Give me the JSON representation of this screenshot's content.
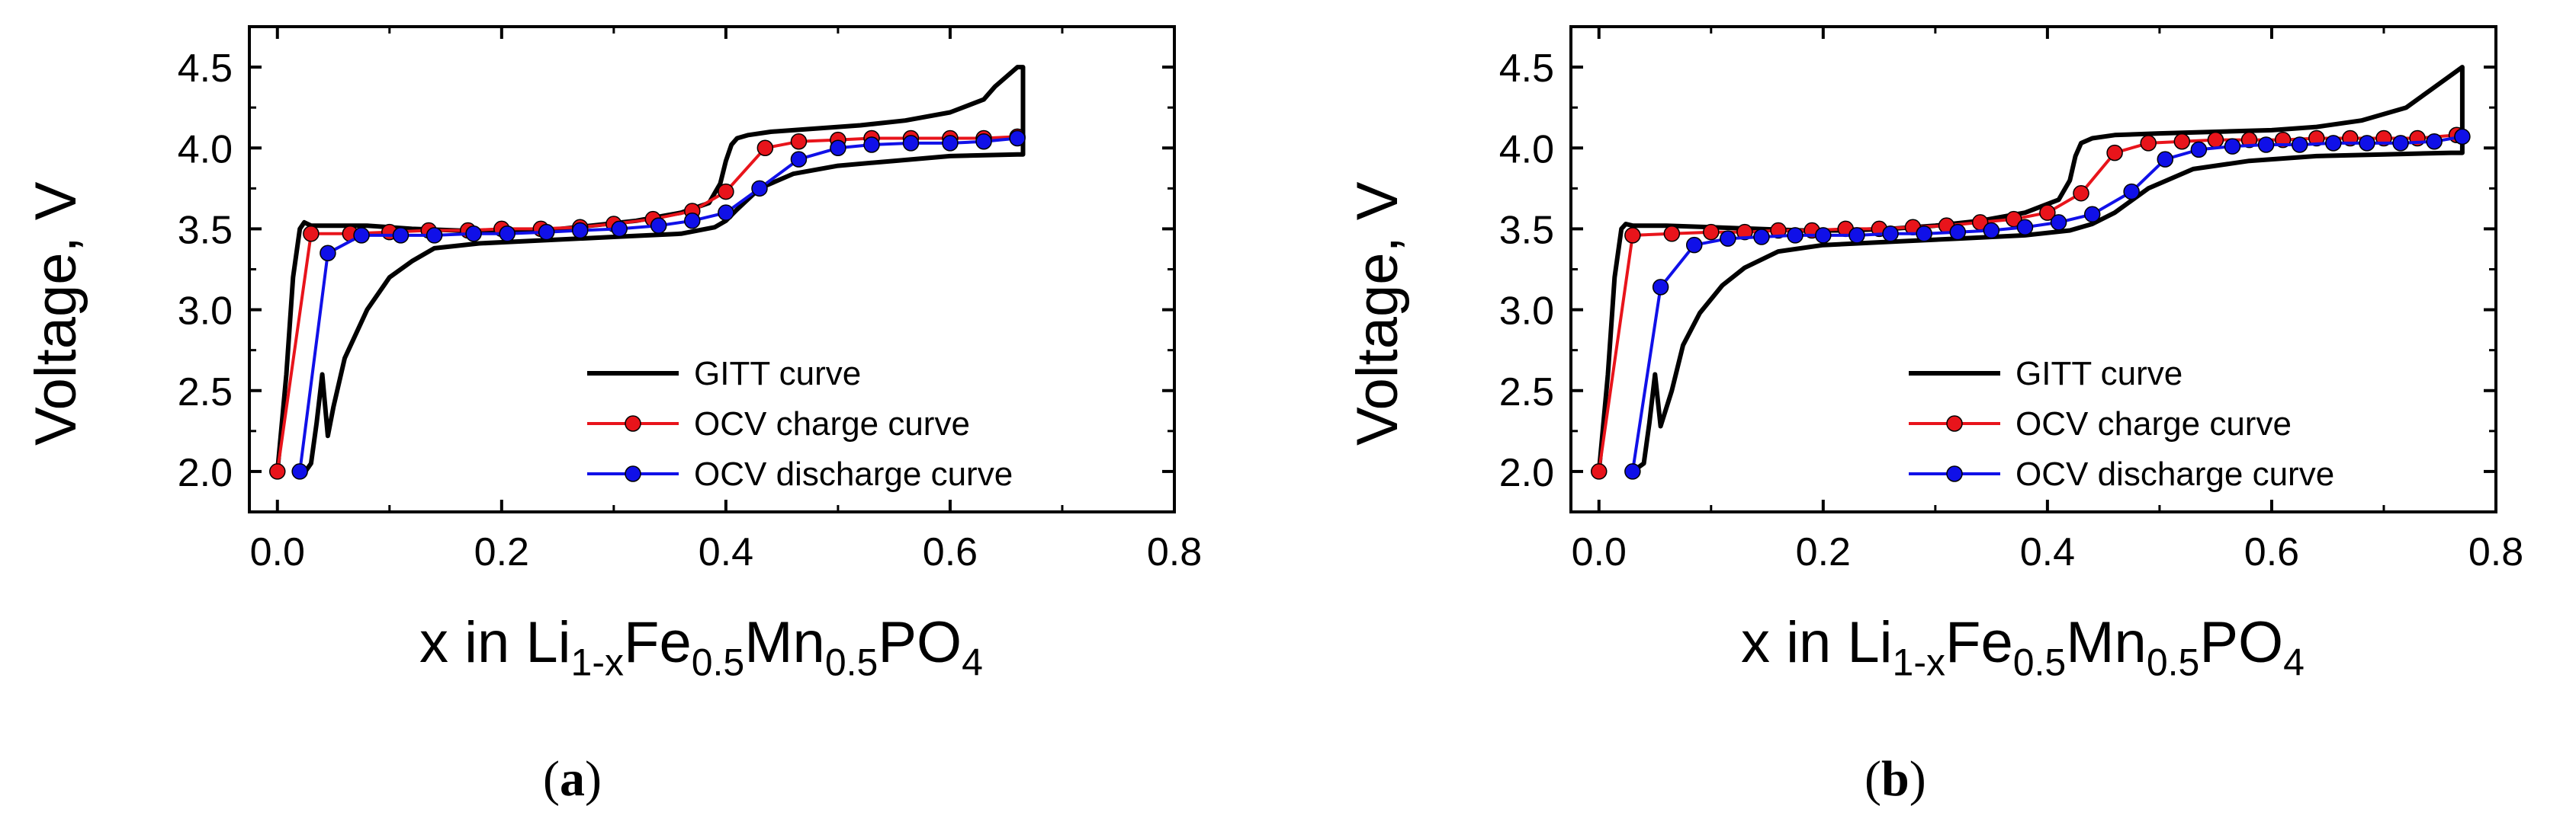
{
  "charts": [
    {
      "label": "a",
      "chart_data": {
        "type": "line",
        "xlabel": "x in Li1-xFe0.5Mn0.5PO4",
        "xlabel_parts": {
          "main": "x in Li",
          "sub1": "1-x",
          "mid1": "Fe",
          "sub2": "0.5",
          "mid2": "Mn",
          "sub3": "0.5",
          "mid3": "PO",
          "sub4": "4"
        },
        "ylabel": "Voltage, V",
        "xlim": [
          -0.025,
          0.8
        ],
        "ylim": [
          1.75,
          4.75
        ],
        "xticks": [
          0.0,
          0.2,
          0.4,
          0.6,
          0.8
        ],
        "xtick_labels": [
          "0.0",
          "0.2",
          "0.4",
          "0.6",
          "0.8"
        ],
        "yticks": [
          2.0,
          2.5,
          3.0,
          3.5,
          4.0,
          4.5
        ],
        "ytick_labels": [
          "2.0",
          "2.5",
          "3.0",
          "3.5",
          "4.0",
          "4.5"
        ],
        "legend_position": "bottom-right",
        "series": [
          {
            "name": "GITT curve",
            "color": "#000000",
            "marker": "none",
            "x": [
              0.0,
              0.008,
              0.014,
              0.02,
              0.024,
              0.03,
              0.05,
              0.08,
              0.12,
              0.16,
              0.2,
              0.24,
              0.28,
              0.32,
              0.36,
              0.385,
              0.395,
              0.4,
              0.405,
              0.41,
              0.42,
              0.44,
              0.48,
              0.52,
              0.56,
              0.6,
              0.63,
              0.64,
              0.66,
              0.665,
              0.665,
              0.66,
              0.6,
              0.55,
              0.5,
              0.46,
              0.43,
              0.41,
              0.4,
              0.39,
              0.36,
              0.3,
              0.24,
              0.18,
              0.14,
              0.12,
              0.1,
              0.08,
              0.06,
              0.05,
              0.045,
              0.04,
              0.035,
              0.03,
              0.025
            ],
            "y": [
              2.0,
              2.6,
              3.2,
              3.5,
              3.54,
              3.52,
              3.52,
              3.52,
              3.5,
              3.49,
              3.48,
              3.49,
              3.52,
              3.55,
              3.6,
              3.66,
              3.78,
              3.92,
              4.02,
              4.06,
              4.08,
              4.1,
              4.12,
              4.14,
              4.17,
              4.22,
              4.3,
              4.38,
              4.5,
              4.5,
              3.96,
              3.96,
              3.95,
              3.92,
              3.89,
              3.84,
              3.75,
              3.62,
              3.55,
              3.51,
              3.47,
              3.45,
              3.43,
              3.41,
              3.38,
              3.3,
              3.2,
              3.0,
              2.7,
              2.4,
              2.22,
              2.6,
              2.3,
              2.05,
              2.0
            ]
          },
          {
            "name": "OCV charge curve",
            "color": "#e8141b",
            "marker": "circle",
            "x": [
              0.0,
              0.03,
              0.065,
              0.1,
              0.135,
              0.17,
              0.2,
              0.235,
              0.27,
              0.3,
              0.335,
              0.37,
              0.4,
              0.435,
              0.465,
              0.5,
              0.53,
              0.565,
              0.6,
              0.63,
              0.66
            ],
            "y": [
              2.0,
              3.47,
              3.47,
              3.48,
              3.49,
              3.49,
              3.5,
              3.5,
              3.51,
              3.53,
              3.56,
              3.61,
              3.73,
              4.0,
              4.04,
              4.05,
              4.06,
              4.06,
              4.06,
              4.06,
              4.07
            ]
          },
          {
            "name": "OCV discharge curve",
            "color": "#1010e8",
            "marker": "circle",
            "x": [
              0.02,
              0.045,
              0.075,
              0.11,
              0.14,
              0.175,
              0.205,
              0.24,
              0.27,
              0.305,
              0.34,
              0.37,
              0.4,
              0.43,
              0.465,
              0.5,
              0.53,
              0.565,
              0.6,
              0.63,
              0.66
            ],
            "y": [
              2.0,
              3.35,
              3.46,
              3.46,
              3.46,
              3.47,
              3.47,
              3.48,
              3.49,
              3.5,
              3.52,
              3.55,
              3.6,
              3.75,
              3.93,
              4.0,
              4.02,
              4.03,
              4.03,
              4.04,
              4.06
            ]
          }
        ]
      }
    },
    {
      "label": "b",
      "chart_data": {
        "type": "line",
        "xlabel": "x in Li1-xFe0.5Mn0.5PO4",
        "xlabel_parts": {
          "main": "x in Li",
          "sub1": "1-x",
          "mid1": "Fe",
          "sub2": "0.5",
          "mid2": "Mn",
          "sub3": "0.5",
          "mid3": "PO",
          "sub4": "4"
        },
        "ylabel": "Voltage, V",
        "xlim": [
          -0.025,
          0.8
        ],
        "ylim": [
          1.75,
          4.75
        ],
        "xticks": [
          0.0,
          0.2,
          0.4,
          0.6,
          0.8
        ],
        "xtick_labels": [
          "0.0",
          "0.2",
          "0.4",
          "0.6",
          "0.8"
        ],
        "yticks": [
          2.0,
          2.5,
          3.0,
          3.5,
          4.0,
          4.5
        ],
        "ytick_labels": [
          "2.0",
          "2.5",
          "3.0",
          "3.5",
          "4.0",
          "4.5"
        ],
        "legend_position": "bottom-right",
        "series": [
          {
            "name": "GITT curve",
            "color": "#000000",
            "marker": "none",
            "x": [
              0.0,
              0.008,
              0.014,
              0.02,
              0.024,
              0.03,
              0.06,
              0.1,
              0.14,
              0.18,
              0.22,
              0.26,
              0.3,
              0.34,
              0.38,
              0.41,
              0.42,
              0.425,
              0.43,
              0.44,
              0.46,
              0.5,
              0.55,
              0.6,
              0.64,
              0.68,
              0.72,
              0.74,
              0.76,
              0.77,
              0.77,
              0.76,
              0.7,
              0.64,
              0.58,
              0.53,
              0.49,
              0.46,
              0.44,
              0.42,
              0.38,
              0.32,
              0.26,
              0.2,
              0.16,
              0.13,
              0.11,
              0.09,
              0.075,
              0.065,
              0.055,
              0.05,
              0.045,
              0.04,
              0.03
            ],
            "y": [
              2.0,
              2.6,
              3.2,
              3.5,
              3.53,
              3.52,
              3.52,
              3.51,
              3.5,
              3.49,
              3.49,
              3.5,
              3.52,
              3.55,
              3.6,
              3.68,
              3.8,
              3.95,
              4.03,
              4.06,
              4.08,
              4.09,
              4.1,
              4.11,
              4.13,
              4.17,
              4.25,
              4.35,
              4.45,
              4.5,
              3.97,
              3.97,
              3.96,
              3.95,
              3.92,
              3.87,
              3.75,
              3.6,
              3.53,
              3.49,
              3.46,
              3.44,
              3.42,
              3.4,
              3.36,
              3.26,
              3.15,
              2.98,
              2.78,
              2.5,
              2.28,
              2.6,
              2.3,
              2.05,
              2.0
            ]
          },
          {
            "name": "OCV charge curve",
            "color": "#e8141b",
            "marker": "circle",
            "x": [
              0.0,
              0.03,
              0.065,
              0.1,
              0.13,
              0.16,
              0.19,
              0.22,
              0.25,
              0.28,
              0.31,
              0.34,
              0.37,
              0.4,
              0.43,
              0.46,
              0.49,
              0.52,
              0.55,
              0.58,
              0.61,
              0.64,
              0.67,
              0.7,
              0.73,
              0.765
            ],
            "y": [
              2.0,
              3.46,
              3.47,
              3.48,
              3.48,
              3.49,
              3.49,
              3.5,
              3.5,
              3.51,
              3.52,
              3.54,
              3.56,
              3.6,
              3.72,
              3.97,
              4.03,
              4.04,
              4.05,
              4.05,
              4.05,
              4.06,
              4.06,
              4.06,
              4.06,
              4.08
            ]
          },
          {
            "name": "OCV discharge curve",
            "color": "#1010e8",
            "marker": "circle",
            "x": [
              0.03,
              0.055,
              0.085,
              0.115,
              0.145,
              0.175,
              0.2,
              0.23,
              0.26,
              0.29,
              0.32,
              0.35,
              0.38,
              0.41,
              0.44,
              0.475,
              0.505,
              0.535,
              0.565,
              0.595,
              0.625,
              0.655,
              0.685,
              0.715,
              0.745,
              0.77
            ],
            "y": [
              2.0,
              3.14,
              3.4,
              3.44,
              3.45,
              3.46,
              3.46,
              3.46,
              3.47,
              3.47,
              3.48,
              3.49,
              3.51,
              3.54,
              3.59,
              3.73,
              3.93,
              3.99,
              4.01,
              4.02,
              4.02,
              4.03,
              4.03,
              4.03,
              4.04,
              4.07
            ]
          }
        ]
      }
    }
  ]
}
